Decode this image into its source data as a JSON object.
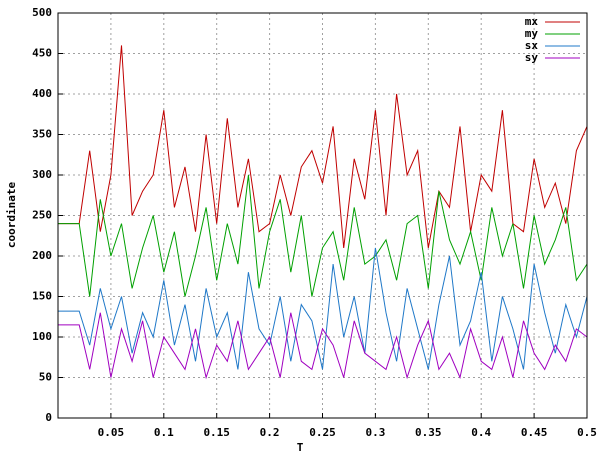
{
  "chart_data": {
    "type": "line",
    "x_label": "T",
    "y_label": "coordinate",
    "x": [
      0,
      0.01,
      0.02,
      0.03,
      0.04,
      0.05,
      0.06,
      0.07,
      0.08,
      0.09,
      0.1,
      0.11,
      0.12,
      0.13,
      0.14,
      0.15,
      0.16,
      0.17,
      0.18,
      0.19,
      0.2,
      0.21,
      0.22,
      0.23,
      0.24,
      0.25,
      0.26,
      0.27,
      0.28,
      0.29,
      0.3,
      0.31,
      0.32,
      0.33,
      0.34,
      0.35,
      0.36,
      0.37,
      0.38,
      0.39,
      0.4,
      0.41,
      0.42,
      0.43,
      0.44,
      0.45,
      0.46,
      0.47,
      0.48,
      0.49,
      0.5
    ],
    "series": [
      {
        "name": "mx",
        "color": "#c00000",
        "values": [
          240,
          240,
          240,
          330,
          230,
          300,
          460,
          250,
          280,
          300,
          380,
          260,
          310,
          230,
          350,
          240,
          370,
          260,
          320,
          230,
          240,
          300,
          250,
          310,
          330,
          290,
          360,
          210,
          320,
          270,
          380,
          250,
          400,
          300,
          330,
          210,
          280,
          260,
          360,
          230,
          300,
          280,
          380,
          240,
          230,
          320,
          260,
          290,
          240,
          330,
          360
        ]
      },
      {
        "name": "my",
        "color": "#00a000",
        "values": [
          240,
          240,
          240,
          150,
          270,
          200,
          240,
          160,
          210,
          250,
          180,
          230,
          150,
          200,
          260,
          170,
          240,
          190,
          300,
          160,
          230,
          270,
          180,
          250,
          150,
          210,
          230,
          170,
          260,
          190,
          200,
          220,
          170,
          240,
          250,
          160,
          280,
          220,
          190,
          230,
          170,
          260,
          200,
          240,
          160,
          250,
          190,
          220,
          260,
          170,
          190
        ]
      },
      {
        "name": "sx",
        "color": "#1f78c8",
        "values": [
          132,
          132,
          132,
          90,
          160,
          110,
          150,
          80,
          130,
          100,
          170,
          90,
          140,
          70,
          160,
          100,
          130,
          60,
          180,
          110,
          90,
          150,
          70,
          140,
          120,
          60,
          190,
          100,
          150,
          80,
          210,
          130,
          70,
          160,
          110,
          60,
          140,
          200,
          90,
          120,
          180,
          70,
          150,
          110,
          60,
          190,
          130,
          80,
          140,
          100,
          150
        ]
      },
      {
        "name": "sy",
        "color": "#a000c0",
        "values": [
          115,
          115,
          115,
          60,
          130,
          50,
          110,
          70,
          120,
          50,
          100,
          80,
          60,
          110,
          50,
          90,
          70,
          120,
          60,
          80,
          100,
          50,
          130,
          70,
          60,
          110,
          90,
          50,
          120,
          80,
          70,
          60,
          100,
          50,
          90,
          120,
          60,
          80,
          50,
          110,
          70,
          60,
          100,
          50,
          120,
          80,
          60,
          90,
          70,
          110,
          100
        ]
      }
    ],
    "xlim": [
      0,
      0.5
    ],
    "xticks": [
      0.05,
      0.1,
      0.15,
      0.2,
      0.25,
      0.3,
      0.35,
      0.4,
      0.45,
      0.5
    ],
    "ylim": [
      0,
      500
    ],
    "yticks": [
      0,
      50,
      100,
      150,
      200,
      250,
      300,
      350,
      400,
      450,
      500
    ],
    "grid": true,
    "legend": "top-right"
  }
}
